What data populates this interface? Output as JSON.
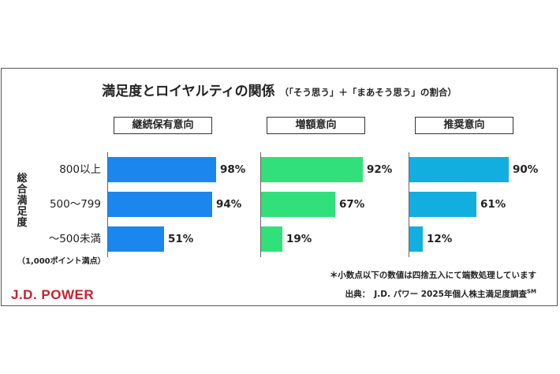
{
  "title": "満足度とロイヤルティの関係",
  "subtitle": "（「そう思う」＋「まあそう思う」の割合）",
  "axis_label": "総合満足度",
  "axis_note": "（1,000ポイント満点）",
  "footnote": "＊小数点以下の数値は四捨五入にて端数処理しています",
  "source": "出典：　J.D. パワー 2025年個人株主満足度調査",
  "source_mark": "SM",
  "logo": "J.D. POWER",
  "colors": {
    "blue": "#1a86ee",
    "green": "#31e07a",
    "cyan": "#12aee0",
    "logo": "#c8202f"
  },
  "chart_data": {
    "type": "bar",
    "orientation": "horizontal",
    "categories": [
      "800以上",
      "500～799",
      "～500未満"
    ],
    "series": [
      {
        "name": "継続保有意向",
        "values": [
          98,
          94,
          51
        ]
      },
      {
        "name": "増額意向",
        "values": [
          92,
          67,
          19
        ]
      },
      {
        "name": "推奨意向",
        "values": [
          90,
          61,
          12
        ]
      }
    ],
    "unit": "%",
    "xlim": [
      0,
      100
    ]
  }
}
